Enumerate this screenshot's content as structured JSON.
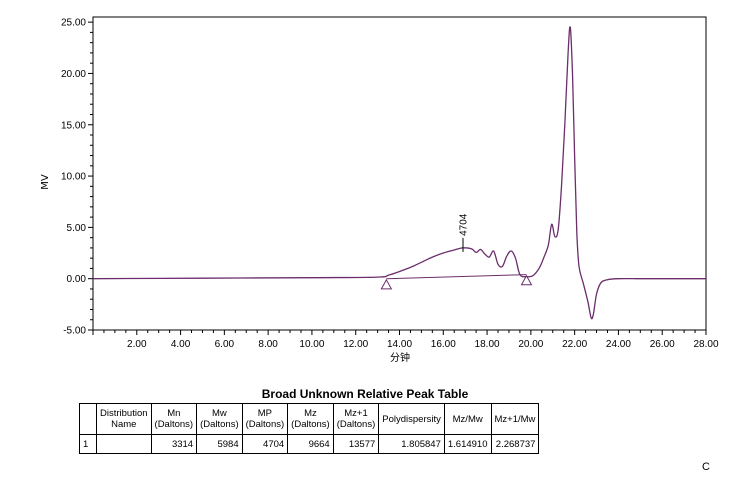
{
  "chart_data": {
    "type": "line",
    "title": "",
    "xlabel": "分钟",
    "ylabel": "MV",
    "xlim": [
      0,
      28
    ],
    "ylim": [
      -5,
      25.5
    ],
    "x_ticks": [
      "2.00",
      "4.00",
      "6.00",
      "8.00",
      "10.00",
      "12.00",
      "14.00",
      "16.00",
      "18.00",
      "20.00",
      "22.00",
      "24.00",
      "26.00",
      "28.00"
    ],
    "y_ticks": [
      "25.00",
      "20.00",
      "15.00",
      "10.00",
      "5.00",
      "0.00",
      "-5.00"
    ],
    "grid": false,
    "series": [
      {
        "color": "#6b2d6b",
        "x": [
          0,
          5,
          10,
          13.0,
          13.5,
          14.0,
          14.5,
          15.0,
          15.5,
          16.0,
          16.5,
          16.9,
          17.3,
          17.5,
          17.7,
          17.9,
          18.1,
          18.3,
          18.5,
          18.7,
          18.9,
          19.1,
          19.3,
          19.5,
          19.8,
          20.1,
          20.4,
          20.6,
          20.8,
          20.95,
          21.1,
          21.25,
          21.4,
          21.55,
          21.7,
          21.8,
          21.9,
          22.0,
          22.1,
          22.2,
          22.4,
          22.6,
          22.75,
          22.85,
          23.0,
          23.2,
          23.5,
          24.0,
          25.0,
          26.0,
          27.0,
          28.0
        ],
        "y": [
          0.0,
          0.05,
          0.1,
          0.15,
          0.35,
          0.7,
          1.1,
          1.6,
          2.1,
          2.5,
          2.8,
          3.0,
          2.9,
          2.55,
          2.85,
          2.4,
          2.1,
          2.7,
          1.4,
          1.2,
          2.2,
          2.7,
          2.0,
          0.4,
          0.2,
          0.3,
          1.1,
          2.1,
          3.3,
          5.3,
          4.1,
          4.8,
          9.0,
          15.0,
          22.0,
          24.5,
          20.0,
          12.0,
          4.5,
          1.2,
          -0.5,
          -2.2,
          -3.8,
          -3.5,
          -1.5,
          -0.4,
          -0.1,
          0.0,
          0.0,
          0.0,
          0.0,
          0.0
        ]
      }
    ],
    "baseline": {
      "x": [
        13.4,
        19.8
      ],
      "y": [
        0.0,
        0.4
      ]
    },
    "markers": [
      {
        "type": "triangle",
        "x": 13.4,
        "y": -0.6
      },
      {
        "type": "triangle",
        "x": 19.8,
        "y": -0.2
      }
    ],
    "annotations": [
      {
        "text": "4704",
        "x": 16.9,
        "y": 3.0
      }
    ]
  },
  "table": {
    "title": "Broad Unknown Relative Peak Table",
    "headers": [
      [
        "",
        ""
      ],
      [
        "Distribution",
        "Name"
      ],
      [
        "Mn",
        "(Daltons)"
      ],
      [
        "Mw",
        "(Daltons)"
      ],
      [
        "MP",
        "(Daltons)"
      ],
      [
        "Mz",
        "(Daltons)"
      ],
      [
        "Mz+1",
        "(Daltons)"
      ],
      [
        "Polydispersity",
        ""
      ],
      [
        "Mz/Mw",
        ""
      ],
      [
        "Mz+1/Mw",
        ""
      ]
    ],
    "rows": [
      [
        "1",
        "",
        "3314",
        "5984",
        "4704",
        "9664",
        "13577",
        "1.805847",
        "1.614910",
        "2.268737"
      ]
    ]
  },
  "corner_label": "C"
}
